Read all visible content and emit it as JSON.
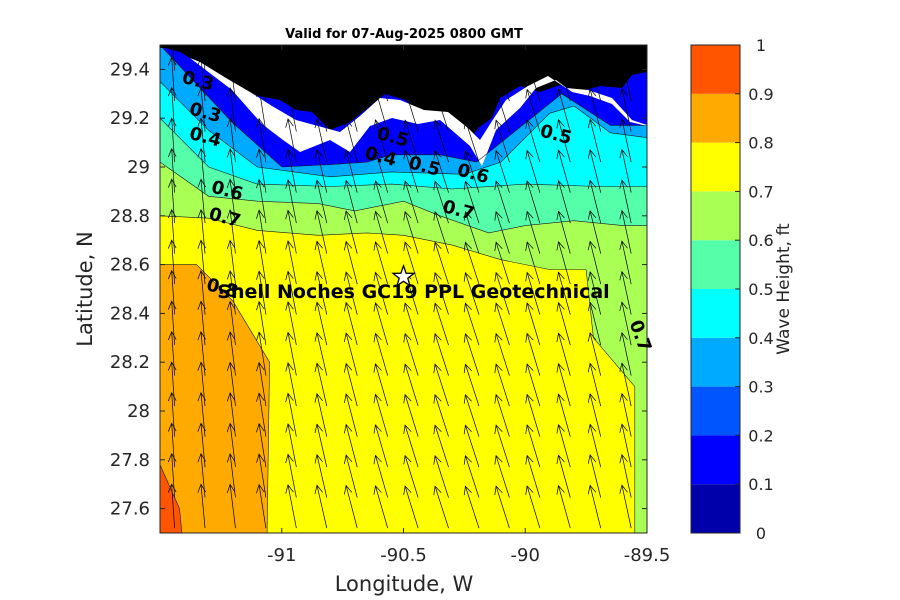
{
  "chart_data": {
    "type": "contour",
    "title": "Valid for 07-Aug-2025 0800 GMT",
    "xlabel": "Longitude, W",
    "ylabel": "Latitude, N",
    "xlim": [
      -91.5,
      -89.5
    ],
    "ylim": [
      27.5,
      29.5
    ],
    "xticks": [
      -91,
      -90.5,
      -90,
      -89.5
    ],
    "xtick_labels": [
      "-91",
      "-90.5",
      "-90",
      "-89.5"
    ],
    "yticks": [
      27.6,
      27.8,
      28.0,
      28.2,
      28.4,
      28.6,
      28.8,
      29.0,
      29.2,
      29.4
    ],
    "ytick_labels": [
      "27.6",
      "27.8",
      "28",
      "28.2",
      "28.4",
      "28.6",
      "28.8",
      "29",
      "29.2",
      "29.4"
    ],
    "colorbar": {
      "label": "Wave Height, ft",
      "levels": [
        0,
        0.1,
        0.2,
        0.3,
        0.4,
        0.5,
        0.6,
        0.7,
        0.8,
        0.9,
        1.0
      ],
      "tick_labels": [
        "0",
        "0.1",
        "0.2",
        "0.3",
        "0.4",
        "0.5",
        "0.6",
        "0.7",
        "0.8",
        "0.9",
        "1"
      ],
      "colors": [
        "#0000aa",
        "#0000ff",
        "#0055ff",
        "#00aaff",
        "#00ffff",
        "#55ffaa",
        "#aaff55",
        "#ffff00",
        "#ffaa00",
        "#ff5500"
      ]
    },
    "contour_bands": [
      {
        "level": 0.4,
        "points": [
          [
            -91.5,
            29.5
          ],
          [
            -91.2,
            29.18
          ],
          [
            -91.0,
            29.0
          ],
          [
            -90.8,
            29.01
          ],
          [
            -90.65,
            29.02
          ],
          [
            -90.55,
            29.05
          ],
          [
            -90.35,
            29.05
          ],
          [
            -90.2,
            29.02
          ],
          [
            -90.1,
            29.1
          ],
          [
            -89.85,
            29.3
          ],
          [
            -89.65,
            29.17
          ],
          [
            -89.5,
            29.17
          ],
          [
            -89.5,
            27.5
          ],
          [
            -91.5,
            27.5
          ]
        ]
      },
      {
        "level": 0.5,
        "points": [
          [
            -91.5,
            29.35
          ],
          [
            -91.3,
            29.15
          ],
          [
            -91.1,
            29.0
          ],
          [
            -90.8,
            28.96
          ],
          [
            -90.55,
            28.98
          ],
          [
            -90.25,
            28.97
          ],
          [
            -90.1,
            29.02
          ],
          [
            -89.9,
            29.22
          ],
          [
            -89.8,
            29.25
          ],
          [
            -89.65,
            29.14
          ],
          [
            -89.5,
            29.12
          ],
          [
            -89.5,
            27.5
          ],
          [
            -91.5,
            27.5
          ]
        ]
      },
      {
        "level": 0.6,
        "points": [
          [
            -91.5,
            29.2
          ],
          [
            -91.3,
            29.0
          ],
          [
            -91.1,
            28.93
          ],
          [
            -90.8,
            28.92
          ],
          [
            -90.55,
            28.93
          ],
          [
            -90.3,
            28.91
          ],
          [
            -90.0,
            28.93
          ],
          [
            -89.7,
            28.92
          ],
          [
            -89.5,
            28.92
          ],
          [
            -89.5,
            27.5
          ],
          [
            -91.5,
            27.5
          ]
        ]
      },
      {
        "level": 0.7,
        "points": [
          [
            -91.5,
            29.02
          ],
          [
            -91.3,
            28.88
          ],
          [
            -91.1,
            28.86
          ],
          [
            -90.85,
            28.85
          ],
          [
            -90.7,
            28.82
          ],
          [
            -90.5,
            28.86
          ],
          [
            -90.35,
            28.8
          ],
          [
            -90.15,
            28.73
          ],
          [
            -90.0,
            28.76
          ],
          [
            -89.8,
            28.78
          ],
          [
            -89.6,
            28.76
          ],
          [
            -89.5,
            28.76
          ],
          [
            -89.5,
            27.5
          ],
          [
            -91.5,
            27.5
          ]
        ]
      },
      {
        "level": 0.8,
        "points": [
          [
            -91.5,
            28.8
          ],
          [
            -91.3,
            28.79
          ],
          [
            -91.1,
            28.74
          ],
          [
            -90.85,
            28.72
          ],
          [
            -90.65,
            28.73
          ],
          [
            -90.5,
            28.72
          ],
          [
            -90.3,
            28.68
          ],
          [
            -90.1,
            28.62
          ],
          [
            -89.9,
            28.58
          ],
          [
            -89.75,
            28.58
          ],
          [
            -89.72,
            28.3
          ],
          [
            -89.55,
            28.1
          ],
          [
            -89.55,
            27.5
          ],
          [
            -91.5,
            27.5
          ]
        ]
      },
      {
        "level": 0.9,
        "points": [
          [
            -91.5,
            28.6
          ],
          [
            -91.35,
            28.6
          ],
          [
            -91.2,
            28.45
          ],
          [
            -91.05,
            28.2
          ],
          [
            -91.06,
            27.5
          ],
          [
            -91.5,
            27.5
          ]
        ]
      },
      {
        "level": 1.0,
        "points": [
          [
            -91.5,
            27.78
          ],
          [
            -91.42,
            27.6
          ],
          [
            -91.41,
            27.5
          ],
          [
            -91.5,
            27.5
          ]
        ]
      }
    ],
    "contour_labels": [
      {
        "text": "0.3",
        "x": -91.35,
        "y": 29.33
      },
      {
        "text": "0.3",
        "x": -91.32,
        "y": 29.2
      },
      {
        "text": "0.4",
        "x": -91.32,
        "y": 29.1
      },
      {
        "text": "0.5",
        "x": -90.55,
        "y": 29.1
      },
      {
        "text": "0.4",
        "x": -90.6,
        "y": 29.02
      },
      {
        "text": "0.5",
        "x": -90.42,
        "y": 28.98
      },
      {
        "text": "0.6",
        "x": -90.22,
        "y": 28.95
      },
      {
        "text": "0.5",
        "x": -89.88,
        "y": 29.11
      },
      {
        "text": "0.6",
        "x": -91.23,
        "y": 28.88
      },
      {
        "text": "0.7",
        "x": -91.24,
        "y": 28.77
      },
      {
        "text": "0.7",
        "x": -90.28,
        "y": 28.8
      },
      {
        "text": "0.8",
        "x": -91.25,
        "y": 28.48
      },
      {
        "text": "0.7",
        "x": -89.55,
        "y": 28.3
      }
    ],
    "annotation": {
      "text": "Shell Noches   GC19 PPL  Geotechnical",
      "x": -90.5,
      "y": 28.55,
      "marker": "star"
    },
    "vectors": {
      "direction": "toward north-northwest",
      "grid_dx": 0.125,
      "grid_dy": 0.125
    }
  }
}
